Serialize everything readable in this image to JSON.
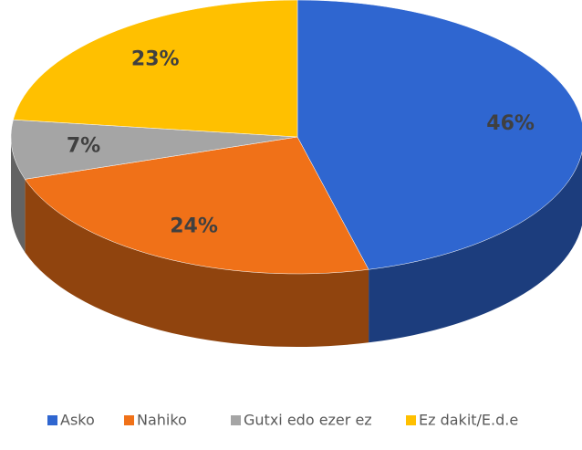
{
  "chart_data": {
    "type": "pie3d",
    "categories": [
      "Asko",
      "Nahiko",
      "Gutxi edo ezer ez",
      "Ez dakit/E.d.e"
    ],
    "values": [
      46,
      24,
      7,
      23
    ],
    "value_labels": [
      "46%",
      "24%",
      "7%",
      "23%"
    ],
    "colors": [
      "#2f66d0",
      "#f07118",
      "#a5a5a5",
      "#ffc000"
    ],
    "legend": "bottom"
  }
}
